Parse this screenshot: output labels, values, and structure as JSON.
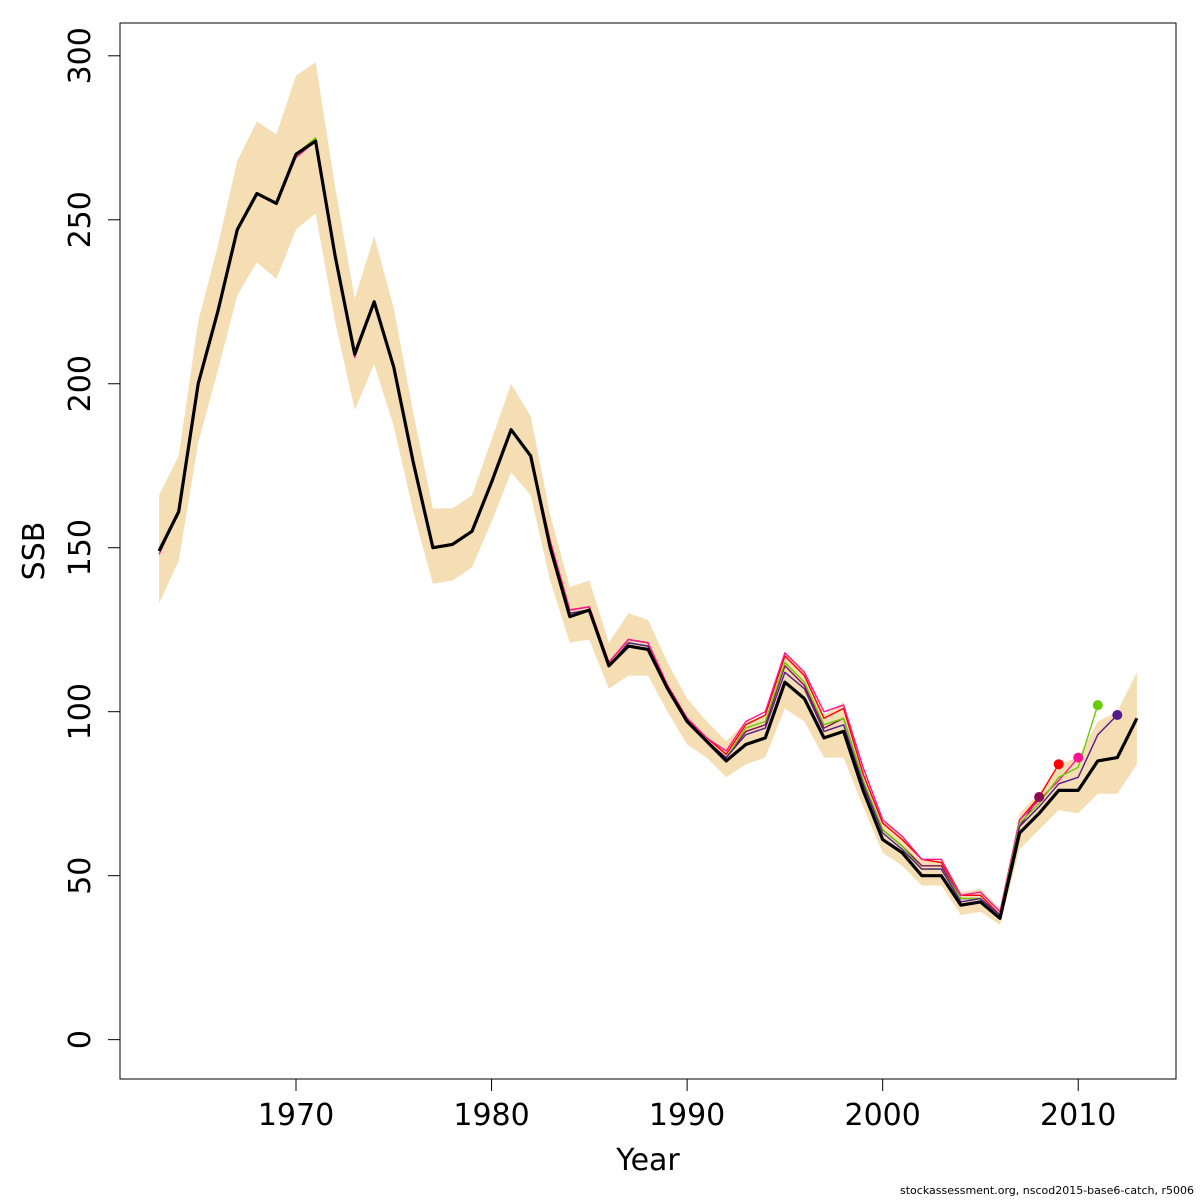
{
  "chart_data": {
    "type": "line",
    "xlabel": "Year",
    "ylabel": "SSB",
    "xlim": [
      1961,
      2015
    ],
    "ylim": [
      -12,
      310
    ],
    "x_ticks": [
      1970,
      1980,
      1990,
      2000,
      2010
    ],
    "y_ticks": [
      0,
      50,
      100,
      150,
      200,
      250,
      300
    ],
    "grid": false,
    "footnote": "stockassessment.org, nscod2015-base6-catch, r5006",
    "colors": {
      "band": "#f5deb3",
      "main": "#000000",
      "retro": [
        "#8b0a50",
        "#ff0000",
        "#ff1493",
        "#66cd00",
        "#551a8b"
      ]
    },
    "years": [
      1963,
      1964,
      1965,
      1966,
      1967,
      1968,
      1969,
      1970,
      1971,
      1972,
      1973,
      1974,
      1975,
      1976,
      1977,
      1978,
      1979,
      1980,
      1981,
      1982,
      1983,
      1984,
      1985,
      1986,
      1987,
      1988,
      1989,
      1990,
      1991,
      1992,
      1993,
      1994,
      1995,
      1996,
      1997,
      1998,
      1999,
      2000,
      2001,
      2002,
      2003,
      2004,
      2005,
      2006,
      2007,
      2008,
      2009,
      2010,
      2011,
      2012,
      2013
    ],
    "ssb": [
      149,
      161,
      200,
      222,
      247,
      258,
      255,
      270,
      274,
      239,
      209,
      225,
      205,
      176,
      150,
      151,
      155,
      170,
      186,
      178,
      150,
      129,
      131,
      114,
      120,
      119,
      107,
      97,
      91,
      85,
      90,
      92,
      109,
      104,
      92,
      94,
      76,
      61,
      57,
      50,
      50,
      41,
      42,
      37,
      63,
      69,
      76,
      76,
      85,
      86,
      98
    ],
    "ssb_low": [
      133,
      146,
      182,
      204,
      227,
      237,
      232,
      247,
      252,
      219,
      192,
      206,
      187,
      161,
      139,
      140,
      144,
      158,
      173,
      166,
      140,
      121,
      122,
      107,
      111,
      111,
      100,
      90,
      86,
      80,
      84,
      86,
      101,
      97,
      86,
      86,
      71,
      57,
      53,
      47,
      47,
      38,
      39,
      35,
      58,
      64,
      70,
      69,
      75,
      75,
      84
    ],
    "ssb_high": [
      166,
      178,
      219,
      242,
      268,
      280,
      276,
      294,
      298,
      260,
      226,
      245,
      223,
      191,
      162,
      162,
      166,
      183,
      200,
      190,
      160,
      138,
      140,
      121,
      130,
      128,
      115,
      104,
      97,
      91,
      97,
      99,
      118,
      112,
      99,
      103,
      82,
      67,
      62,
      55,
      55,
      45,
      46,
      40,
      69,
      75,
      84,
      86,
      97,
      100,
      112
    ],
    "series": [
      {
        "color": "#8b0a50",
        "x": [
          1963,
          1964,
          1965,
          1966,
          1967,
          1968,
          1969,
          1970,
          1971,
          1972,
          1973,
          1974,
          1975,
          1976,
          1977,
          1978,
          1979,
          1980,
          1981,
          1982,
          1983,
          1984,
          1985,
          1986,
          1987,
          1988,
          1989,
          1990,
          1991,
          1992,
          1993,
          1994,
          1995,
          1996,
          1997,
          1998,
          1999,
          2000,
          2001,
          2002,
          2003,
          2004,
          2005,
          2006,
          2007,
          2008
        ],
        "y": [
          149,
          161,
          200,
          222,
          247,
          258,
          255,
          270,
          274,
          239,
          209,
          225,
          205,
          176,
          150,
          151,
          155,
          170,
          186,
          178,
          151,
          130,
          131,
          114,
          121,
          120,
          107,
          98,
          91,
          86,
          94,
          96,
          114,
          108,
          95,
          98,
          79,
          64,
          59,
          53,
          53,
          43,
          43,
          38,
          65,
          74
        ],
        "endpoint": 74
      },
      {
        "color": "#ff0000",
        "x": [
          1963,
          1964,
          1965,
          1966,
          1967,
          1968,
          1969,
          1970,
          1971,
          1972,
          1973,
          1974,
          1975,
          1976,
          1977,
          1978,
          1979,
          1980,
          1981,
          1982,
          1983,
          1984,
          1985,
          1986,
          1987,
          1988,
          1989,
          1990,
          1991,
          1992,
          1993,
          1994,
          1995,
          1996,
          1997,
          1998,
          1999,
          2000,
          2001,
          2002,
          2003,
          2004,
          2005,
          2006,
          2007,
          2008,
          2009
        ],
        "y": [
          149,
          161,
          200,
          222,
          247,
          258,
          255,
          270,
          274,
          239,
          209,
          225,
          205,
          176,
          150,
          151,
          155,
          170,
          186,
          178,
          152,
          131,
          132,
          115,
          122,
          121,
          108,
          98,
          92,
          87,
          96,
          99,
          117,
          111,
          98,
          101,
          81,
          66,
          61,
          55,
          54,
          44,
          44,
          38,
          67,
          74,
          84
        ],
        "endpoint": 84
      },
      {
        "color": "#ff1493",
        "x": [
          1963,
          1964,
          1965,
          1966,
          1967,
          1968,
          1969,
          1970,
          1971,
          1972,
          1973,
          1974,
          1975,
          1976,
          1977,
          1978,
          1979,
          1980,
          1981,
          1982,
          1983,
          1984,
          1985,
          1986,
          1987,
          1988,
          1989,
          1990,
          1991,
          1992,
          1993,
          1994,
          1995,
          1996,
          1997,
          1998,
          1999,
          2000,
          2001,
          2002,
          2003,
          2004,
          2005,
          2006,
          2007,
          2008,
          2009,
          2010
        ],
        "y": [
          148,
          161,
          200,
          222,
          247,
          258,
          255,
          269,
          274,
          238,
          208,
          225,
          205,
          176,
          150,
          151,
          155,
          170,
          186,
          178,
          152,
          131,
          132,
          115,
          122,
          121,
          108,
          98,
          92,
          88,
          97,
          100,
          118,
          112,
          100,
          102,
          83,
          67,
          62,
          55,
          55,
          44,
          45,
          39,
          67,
          73,
          79,
          86
        ],
        "endpoint": 86
      },
      {
        "color": "#66cd00",
        "x": [
          1963,
          1964,
          1965,
          1966,
          1967,
          1968,
          1969,
          1970,
          1971,
          1972,
          1973,
          1974,
          1975,
          1976,
          1977,
          1978,
          1979,
          1980,
          1981,
          1982,
          1983,
          1984,
          1985,
          1986,
          1987,
          1988,
          1989,
          1990,
          1991,
          1992,
          1993,
          1994,
          1995,
          1996,
          1997,
          1998,
          1999,
          2000,
          2001,
          2002,
          2003,
          2004,
          2005,
          2006,
          2007,
          2008,
          2009,
          2010,
          2011
        ],
        "y": [
          149,
          161,
          200,
          222,
          247,
          258,
          255,
          270,
          275,
          239,
          209,
          225,
          205,
          176,
          150,
          151,
          155,
          170,
          186,
          178,
          151,
          130,
          131,
          114,
          121,
          120,
          107,
          97,
          91,
          86,
          95,
          97,
          115,
          109,
          96,
          98,
          79,
          64,
          59,
          52,
          52,
          43,
          43,
          38,
          66,
          72,
          80,
          83,
          102
        ],
        "endpoint": 102
      },
      {
        "color": "#551a8b",
        "x": [
          1963,
          1964,
          1965,
          1966,
          1967,
          1968,
          1969,
          1970,
          1971,
          1972,
          1973,
          1974,
          1975,
          1976,
          1977,
          1978,
          1979,
          1980,
          1981,
          1982,
          1983,
          1984,
          1985,
          1986,
          1987,
          1988,
          1989,
          1990,
          1991,
          1992,
          1993,
          1994,
          1995,
          1996,
          1997,
          1998,
          1999,
          2000,
          2001,
          2002,
          2003,
          2004,
          2005,
          2006,
          2007,
          2008,
          2009,
          2010,
          2011,
          2012
        ],
        "y": [
          149,
          161,
          200,
          222,
          247,
          258,
          255,
          270,
          274,
          239,
          209,
          225,
          205,
          176,
          150,
          151,
          155,
          170,
          186,
          178,
          151,
          130,
          131,
          114,
          121,
          120,
          107,
          97,
          91,
          86,
          93,
          95,
          112,
          107,
          94,
          96,
          78,
          63,
          58,
          52,
          52,
          42,
          43,
          38,
          65,
          71,
          78,
          80,
          93,
          99
        ],
        "endpoint": 99
      }
    ]
  }
}
